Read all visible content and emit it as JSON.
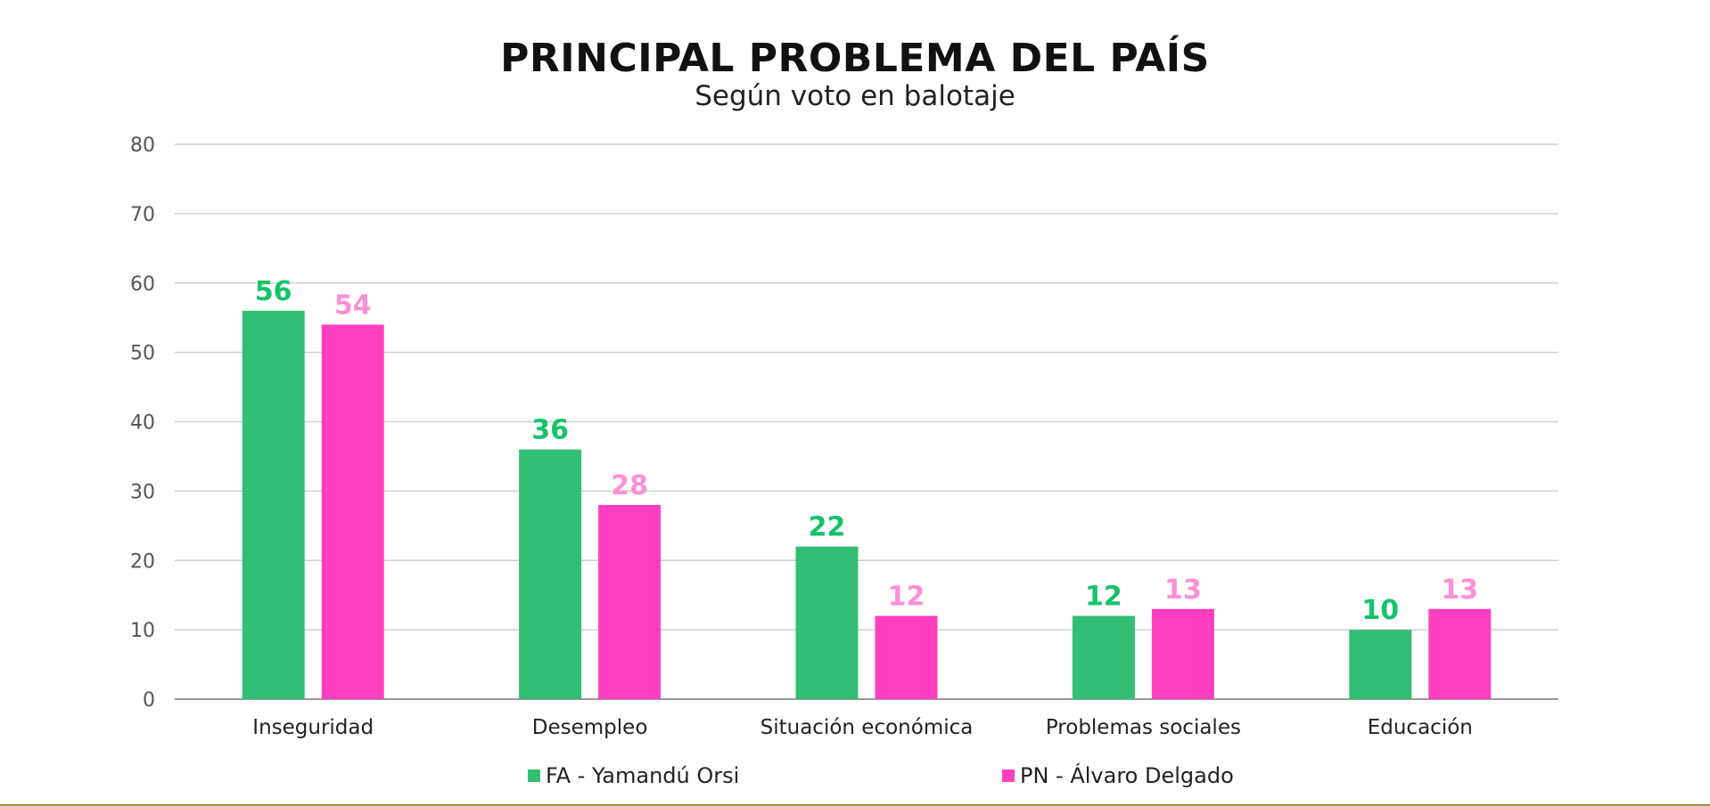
{
  "chart_data": {
    "type": "bar",
    "title": "PRINCIPAL PROBLEMA DEL PAÍS",
    "subtitle": "Según voto en balotaje",
    "categories": [
      "Inseguridad",
      "Desempleo",
      "Situación económica",
      "Problemas sociales",
      "Educación"
    ],
    "series": [
      {
        "name": "FA - Yamandú Orsi",
        "color": "#33bf73",
        "label_color": "#14c36a",
        "values": [
          56,
          36,
          22,
          12,
          10
        ]
      },
      {
        "name": "PN - Álvaro Delgado",
        "color": "#ff3fbf",
        "label_color": "#ff8fd6",
        "values": [
          54,
          28,
          12,
          13,
          13
        ]
      }
    ],
    "ylim": [
      0,
      80
    ],
    "yticks": [
      0,
      10,
      20,
      30,
      40,
      50,
      60,
      70,
      80
    ],
    "grid": true,
    "legend_position": "bottom-center",
    "gridline_color": "#d0d0d0",
    "axis_color": "#9a9a9a"
  }
}
